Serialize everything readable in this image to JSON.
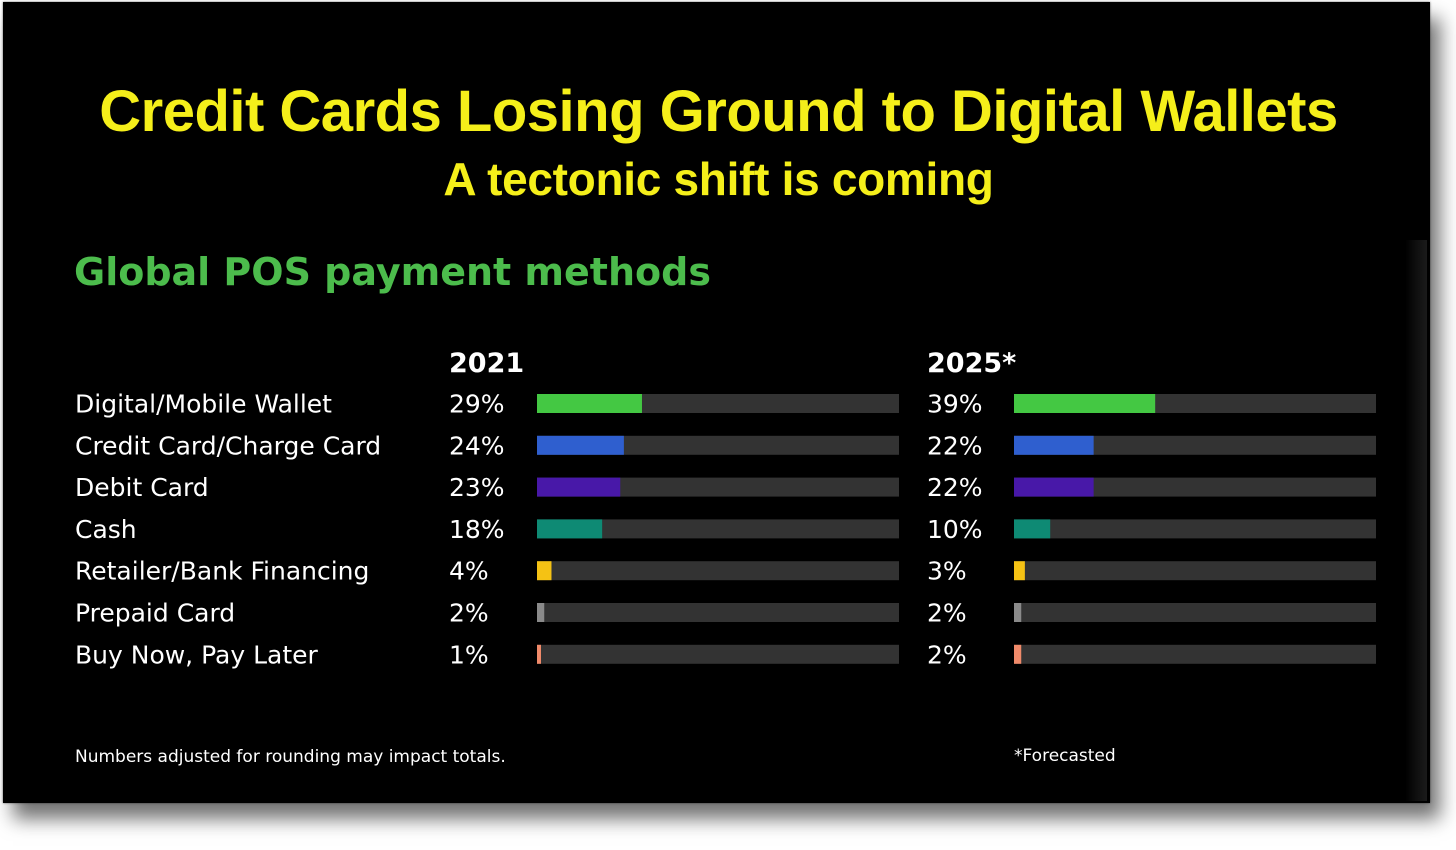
{
  "title": "Credit Cards Losing Ground to Digital Wallets",
  "subtitle": "A tectonic shift is coming",
  "section_title": "Global POS payment methods",
  "notes": {
    "rounding": "Numbers adjusted for rounding may impact totals.",
    "forecast": "*Forecasted"
  },
  "chart_data": {
    "type": "bar",
    "orientation": "horizontal",
    "title": "Global POS payment methods",
    "value_max": 100,
    "categories": [
      "Digital/Mobile Wallet",
      "Credit Card/Charge Card",
      "Debit Card",
      "Cash",
      "Retailer/Bank Financing",
      "Prepaid Card",
      "Buy Now, Pay Later"
    ],
    "colors": [
      "#44c843",
      "#2f5fcf",
      "#4818a8",
      "#0e8a74",
      "#f5c214",
      "#8a8a8a",
      "#f08a6a"
    ],
    "track_color": "#333333",
    "series": [
      {
        "name": "2021",
        "values": [
          29,
          24,
          23,
          18,
          4,
          2,
          1
        ],
        "labels": [
          "29%",
          "24%",
          "23%",
          "18%",
          "4%",
          "2%",
          "1%"
        ]
      },
      {
        "name": "2025*",
        "values": [
          39,
          22,
          22,
          10,
          3,
          2,
          2
        ],
        "labels": [
          "39%",
          "22%",
          "22%",
          "10%",
          "3%",
          "2%",
          "2%"
        ]
      }
    ]
  }
}
